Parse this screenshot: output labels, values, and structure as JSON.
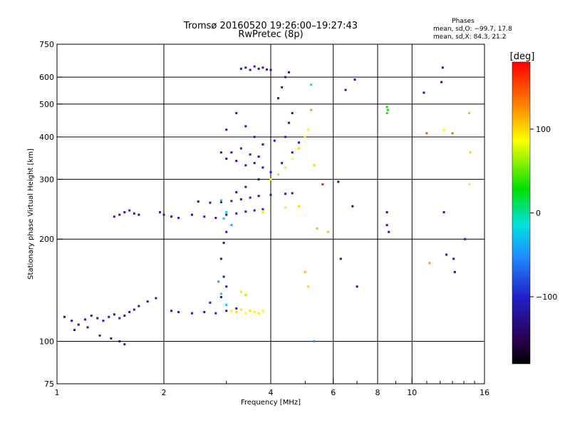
{
  "header": {
    "title": "Tromsø 20160520 19:26:00–19:27:43",
    "subtitle": "RwPretec (8p)",
    "stats_title": "Phases",
    "stats_o": "mean, sd,O: −99.7, 17.8",
    "stats_x": "mean, sd,X:  84.3, 21.2"
  },
  "colorbar": {
    "label": "[deg]",
    "ticks": [
      {
        "value": 100,
        "text": "100"
      },
      {
        "value": 0,
        "text": "0"
      },
      {
        "value": -100,
        "text": "−100"
      }
    ],
    "range": [
      -180,
      180
    ]
  },
  "chart_data": {
    "type": "scatter",
    "title": "Tromsø 20160520 19:26:00–19:27:43",
    "subtitle": "RwPretec (8p)",
    "xlabel": "Frequency [MHz]",
    "ylabel": "Stationary phase Virtual Height [km]",
    "x_scale": "log2",
    "y_scale": "log",
    "xlim": [
      1,
      16
    ],
    "ylim": [
      75,
      750
    ],
    "x_ticks": [
      {
        "value": 1,
        "label": "1"
      },
      {
        "value": 2,
        "label": "2"
      },
      {
        "value": 4,
        "label": "4"
      },
      {
        "value": 6,
        "label": "6"
      },
      {
        "value": 8,
        "label": "8"
      },
      {
        "value": 10,
        "label": "10"
      },
      {
        "value": 16,
        "label": "16"
      }
    ],
    "x_grid": [
      2,
      4,
      6,
      8,
      10
    ],
    "y_ticks": [
      {
        "value": 75,
        "label": "75"
      },
      {
        "value": 100,
        "label": "100"
      },
      {
        "value": 200,
        "label": "200"
      },
      {
        "value": 300,
        "label": "300"
      },
      {
        "value": 400,
        "label": "400"
      },
      {
        "value": 500,
        "label": "500"
      },
      {
        "value": 600,
        "label": "600"
      },
      {
        "value": 750,
        "label": "750"
      }
    ],
    "y_grid": [
      100,
      200,
      300,
      400,
      500,
      600
    ],
    "grid": true,
    "color_variable": "phase [deg]",
    "series": [
      {
        "points": [
          [
            1.05,
            118,
            -115
          ],
          [
            1.1,
            115,
            -110
          ],
          [
            1.15,
            112,
            -120
          ],
          [
            1.2,
            116,
            -105
          ],
          [
            1.25,
            119,
            -110
          ],
          [
            1.3,
            117,
            -115
          ],
          [
            1.35,
            115,
            -100
          ],
          [
            1.4,
            118,
            -110
          ],
          [
            1.45,
            120,
            -120
          ],
          [
            1.5,
            117,
            -105
          ],
          [
            1.55,
            119,
            -110
          ],
          [
            1.6,
            122,
            -115
          ],
          [
            1.65,
            124,
            -100
          ],
          [
            1.7,
            127,
            -110
          ],
          [
            1.8,
            131,
            -120
          ],
          [
            1.9,
            134,
            -110
          ],
          [
            1.12,
            108,
            -120
          ],
          [
            1.22,
            110,
            -115
          ],
          [
            1.32,
            104,
            -100
          ],
          [
            1.42,
            102,
            -110
          ],
          [
            1.5,
            100,
            -120
          ],
          [
            1.55,
            98,
            -115
          ],
          [
            1.45,
            233,
            -105
          ],
          [
            1.5,
            236,
            -110
          ],
          [
            1.55,
            240,
            -115
          ],
          [
            1.6,
            243,
            -100
          ],
          [
            1.65,
            238,
            -110
          ],
          [
            1.7,
            236,
            -115
          ],
          [
            1.95,
            240,
            -105
          ],
          [
            2.0,
            236,
            -110
          ],
          [
            2.1,
            233,
            -115
          ],
          [
            2.2,
            231,
            -100
          ],
          [
            2.4,
            236,
            -110
          ],
          [
            2.6,
            233,
            -105
          ],
          [
            2.8,
            231,
            -110
          ],
          [
            3.0,
            236,
            -115
          ],
          [
            3.2,
            238,
            -100
          ],
          [
            3.4,
            241,
            -110
          ],
          [
            3.6,
            243,
            -105
          ],
          [
            3.8,
            245,
            -115
          ],
          [
            2.5,
            258,
            -110
          ],
          [
            2.7,
            256,
            -105
          ],
          [
            2.9,
            257,
            -115
          ],
          [
            3.1,
            259,
            -100
          ],
          [
            3.3,
            262,
            -110
          ],
          [
            3.5,
            265,
            -105
          ],
          [
            3.7,
            268,
            -115
          ],
          [
            4.0,
            270,
            -110
          ],
          [
            4.4,
            272,
            -105
          ],
          [
            4.6,
            273,
            -115
          ],
          [
            3.2,
            275,
            -110
          ],
          [
            3.4,
            285,
            -105
          ],
          [
            3.7,
            300,
            -115
          ],
          [
            4.0,
            315,
            -110
          ],
          [
            4.3,
            335,
            -105
          ],
          [
            4.6,
            360,
            -115
          ],
          [
            4.8,
            385,
            -110
          ],
          [
            2.9,
            360,
            -110
          ],
          [
            3.0,
            345,
            -115
          ],
          [
            3.1,
            360,
            -105
          ],
          [
            3.2,
            340,
            -110
          ],
          [
            3.3,
            370,
            -100
          ],
          [
            3.4,
            330,
            -115
          ],
          [
            3.5,
            355,
            -105
          ],
          [
            3.6,
            335,
            -110
          ],
          [
            3.7,
            350,
            -115
          ],
          [
            3.8,
            325,
            -120
          ],
          [
            3.0,
            420,
            -110
          ],
          [
            3.2,
            470,
            -105
          ],
          [
            3.4,
            430,
            -115
          ],
          [
            3.6,
            400,
            -110
          ],
          [
            3.8,
            380,
            -115
          ],
          [
            4.1,
            390,
            -110
          ],
          [
            4.4,
            400,
            -105
          ],
          [
            3.3,
            635,
            -105
          ],
          [
            3.4,
            640,
            -110
          ],
          [
            3.5,
            630,
            -115
          ],
          [
            3.6,
            645,
            -100
          ],
          [
            3.7,
            635,
            -110
          ],
          [
            3.8,
            640,
            -105
          ],
          [
            3.9,
            632,
            -115
          ],
          [
            4.0,
            630,
            -110
          ],
          [
            4.2,
            520,
            -110
          ],
          [
            4.3,
            560,
            -105
          ],
          [
            4.4,
            600,
            -115
          ],
          [
            4.5,
            620,
            -110
          ],
          [
            4.6,
            470,
            -115
          ],
          [
            4.5,
            440,
            -105
          ],
          [
            2.1,
            123,
            -110
          ],
          [
            2.2,
            122,
            -105
          ],
          [
            2.4,
            121,
            -115
          ],
          [
            2.6,
            122,
            -110
          ],
          [
            2.8,
            121,
            -105
          ],
          [
            3.0,
            123,
            -115
          ],
          [
            3.2,
            125,
            -110
          ],
          [
            2.7,
            130,
            -105
          ],
          [
            2.9,
            135,
            -115
          ],
          [
            3.0,
            145,
            -110
          ],
          [
            2.95,
            155,
            -105
          ],
          [
            2.9,
            175,
            -115
          ],
          [
            2.95,
            195,
            -110
          ],
          [
            3.0,
            210,
            -105
          ]
        ]
      },
      {
        "points": [
          [
            3.1,
            123,
            90
          ],
          [
            3.2,
            122,
            100
          ],
          [
            3.3,
            124,
            95
          ],
          [
            3.4,
            121,
            85
          ],
          [
            3.5,
            123,
            100
          ],
          [
            3.6,
            122,
            90
          ],
          [
            3.7,
            121,
            95
          ],
          [
            3.8,
            123,
            85
          ],
          [
            4.0,
            300,
            90
          ],
          [
            4.2,
            310,
            100
          ],
          [
            4.4,
            325,
            95
          ],
          [
            4.6,
            345,
            85
          ],
          [
            4.8,
            370,
            100
          ],
          [
            5.0,
            400,
            95
          ],
          [
            5.1,
            420,
            90
          ],
          [
            3.3,
            140,
            75
          ],
          [
            3.4,
            137,
            70
          ],
          [
            3.8,
            240,
            95
          ],
          [
            4.4,
            248,
            80
          ],
          [
            4.8,
            250,
            100
          ],
          [
            5.2,
            480,
            120
          ],
          [
            5.3,
            330,
            70
          ],
          [
            5.6,
            290,
            170
          ],
          [
            5.0,
            160,
            110
          ],
          [
            5.1,
            145,
            100
          ],
          [
            5.4,
            215,
            60
          ],
          [
            5.8,
            210,
            65
          ]
        ]
      },
      {
        "points": [
          [
            2.9,
            260,
            -30
          ],
          [
            3.0,
            240,
            -20
          ],
          [
            3.1,
            220,
            -35
          ],
          [
            2.95,
            230,
            -25
          ],
          [
            2.85,
            150,
            -40
          ],
          [
            2.9,
            138,
            -20
          ],
          [
            3.0,
            128,
            -30
          ],
          [
            5.2,
            570,
            -10
          ],
          [
            5.3,
            100,
            -40
          ],
          [
            6.9,
            590,
            -120
          ],
          [
            6.5,
            550,
            -110
          ],
          [
            6.2,
            295,
            -130
          ],
          [
            6.3,
            175,
            -120
          ],
          [
            6.8,
            250,
            -140
          ],
          [
            7.0,
            145,
            -125
          ],
          [
            8.5,
            240,
            -120
          ],
          [
            8.5,
            220,
            -110
          ],
          [
            8.6,
            210,
            -115
          ],
          [
            10.8,
            540,
            -120
          ],
          [
            12.2,
            640,
            -120
          ],
          [
            12.1,
            580,
            -110
          ],
          [
            12.3,
            240,
            -115
          ],
          [
            12.5,
            180,
            -105
          ],
          [
            13.1,
            175,
            -110
          ],
          [
            13.2,
            160,
            -115
          ],
          [
            14.1,
            200,
            -100
          ],
          [
            8.5,
            490,
            30
          ],
          [
            8.55,
            480,
            25
          ],
          [
            8.5,
            470,
            35
          ],
          [
            11.0,
            410,
            150
          ],
          [
            13.0,
            410,
            140
          ],
          [
            14.5,
            470,
            110
          ],
          [
            14.6,
            360,
            100
          ],
          [
            14.5,
            290,
            95
          ],
          [
            11.2,
            170,
            120
          ],
          [
            12.3,
            420,
            90
          ]
        ]
      }
    ]
  }
}
